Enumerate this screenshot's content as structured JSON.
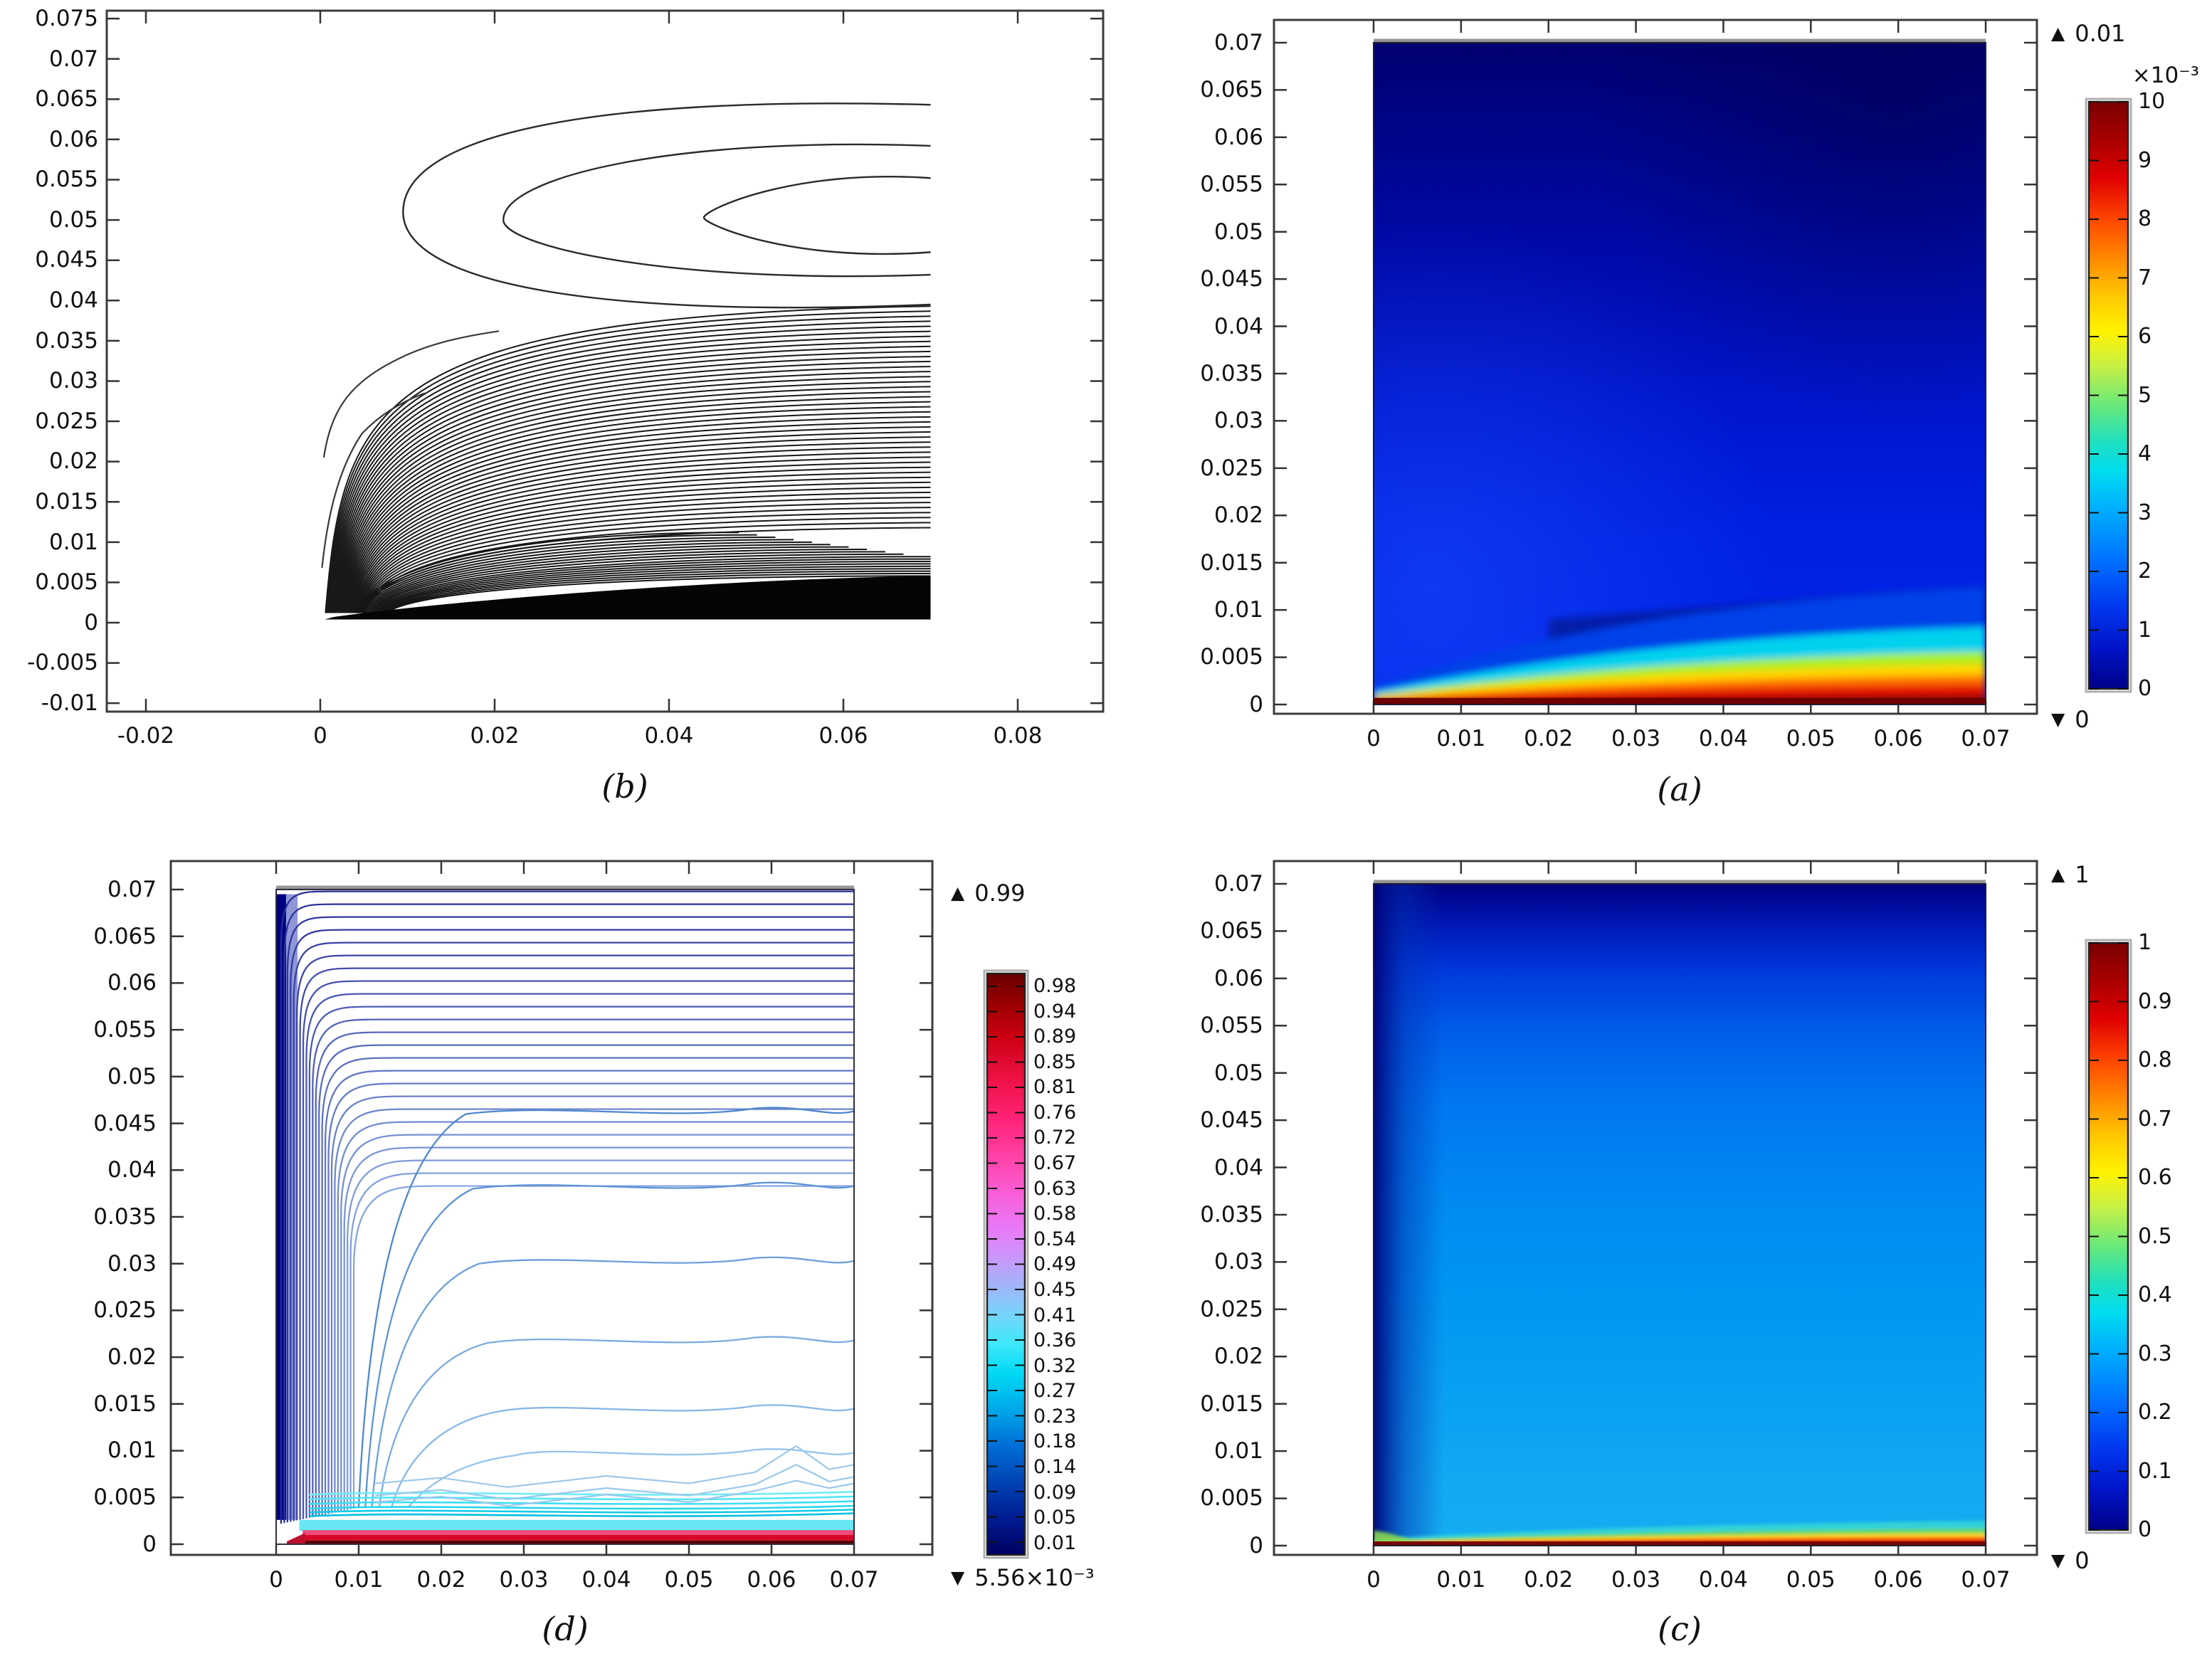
{
  "figure": {
    "background": "#ffffff"
  },
  "panels": {
    "b": {
      "label": "(b)",
      "yticks": [
        "0.075",
        "0.07",
        "0.065",
        "0.06",
        "0.055",
        "0.05",
        "0.045",
        "0.04",
        "0.035",
        "0.03",
        "0.025",
        "0.02",
        "0.015",
        "0.01",
        "0.005",
        "0",
        "-0.005",
        "-0.01"
      ],
      "xticks": [
        "-0.02",
        "0",
        "0.02",
        "0.04",
        "0.06",
        "0.08"
      ]
    },
    "a": {
      "label": "(a)",
      "yticks": [
        "0.07",
        "0.065",
        "0.06",
        "0.055",
        "0.05",
        "0.045",
        "0.04",
        "0.035",
        "0.03",
        "0.025",
        "0.02",
        "0.015",
        "0.01",
        "0.005",
        "0"
      ],
      "xticks": [
        "0",
        "0.01",
        "0.02",
        "0.03",
        "0.04",
        "0.05",
        "0.06",
        "0.07"
      ],
      "colorbar": {
        "max_marker": "▲",
        "max": "0.01",
        "multiplier": "×10⁻³",
        "ticks": [
          "10",
          "9",
          "8",
          "7",
          "6",
          "5",
          "4",
          "3",
          "2",
          "1",
          "0"
        ],
        "min_marker": "▼",
        "min": "0"
      }
    },
    "d": {
      "label": "(d)",
      "yticks": [
        "0.07",
        "0.065",
        "0.06",
        "0.055",
        "0.05",
        "0.045",
        "0.04",
        "0.035",
        "0.03",
        "0.025",
        "0.02",
        "0.015",
        "0.01",
        "0.005",
        "0"
      ],
      "xticks": [
        "0",
        "0.01",
        "0.02",
        "0.03",
        "0.04",
        "0.05",
        "0.06",
        "0.07"
      ],
      "colorbar": {
        "max_marker": "▲",
        "max": "0.99",
        "ticks": [
          "0.98",
          "0.94",
          "0.89",
          "0.85",
          "0.81",
          "0.76",
          "0.72",
          "0.67",
          "0.63",
          "0.58",
          "0.54",
          "0.49",
          "0.45",
          "0.41",
          "0.36",
          "0.32",
          "0.27",
          "0.23",
          "0.18",
          "0.14",
          "0.09",
          "0.05",
          "0.01"
        ],
        "min_marker": "▼",
        "min": "5.56×10⁻³"
      }
    },
    "c": {
      "label": "(c)",
      "yticks": [
        "0.07",
        "0.065",
        "0.06",
        "0.055",
        "0.05",
        "0.045",
        "0.04",
        "0.035",
        "0.03",
        "0.025",
        "0.02",
        "0.015",
        "0.01",
        "0.005",
        "0"
      ],
      "xticks": [
        "0",
        "0.01",
        "0.02",
        "0.03",
        "0.04",
        "0.05",
        "0.06",
        "0.07"
      ],
      "colorbar": {
        "max_marker": "▲",
        "max": "1",
        "ticks": [
          "1",
          "0.9",
          "0.8",
          "0.7",
          "0.6",
          "0.5",
          "0.4",
          "0.3",
          "0.2",
          "0.1",
          "0"
        ],
        "min_marker": "▼",
        "min": "0"
      }
    }
  },
  "chart_data": [
    {
      "id": "b",
      "type": "contour",
      "position": "top-left",
      "title": "(b)",
      "xlim": [
        -0.0245,
        0.0898
      ],
      "ylim": [
        -0.0115,
        0.076
      ],
      "xticks": [
        -0.02,
        0,
        0.02,
        0.04,
        0.06,
        0.08
      ],
      "yticks": [
        0.075,
        0.07,
        0.065,
        0.06,
        0.055,
        0.05,
        0.045,
        0.04,
        0.035,
        0.03,
        0.025,
        0.02,
        0.015,
        0.01,
        0.005,
        0,
        -0.005,
        -0.01
      ],
      "data_region": {
        "x": [
          0,
          0.07
        ],
        "y": [
          0,
          0.07
        ]
      },
      "line_color": "#1a1a1a",
      "grid": false,
      "legend": false,
      "description": "Black stream-function contours: three nested open recirculation loops between y≈0.038 and y≈0.065 opening toward x=0.07; below y≈0.04 a dense fan of contour lines sweeps from the origin to the right edge, merging into a solid black band along the bottom wall (y≲0.006); a white lens-shaped gap near y≈0.009, x>0.05."
    },
    {
      "id": "a",
      "type": "heatmap",
      "position": "top-right",
      "title": "(a)",
      "xlim": [
        -0.0114,
        0.0759
      ],
      "ylim": [
        -0.001,
        0.0724
      ],
      "xticks": [
        0,
        0.01,
        0.02,
        0.03,
        0.04,
        0.05,
        0.06,
        0.07
      ],
      "yticks": [
        0.07,
        0.065,
        0.06,
        0.055,
        0.05,
        0.045,
        0.04,
        0.035,
        0.03,
        0.025,
        0.02,
        0.015,
        0.01,
        0.005,
        0
      ],
      "data_region": {
        "x": [
          0,
          0.07
        ],
        "y": [
          0,
          0.07
        ]
      },
      "value_min": 0,
      "value_max": 0.01,
      "colorbar_scale": "×10⁻³",
      "colorbar_ticks": [
        10,
        9,
        8,
        7,
        6,
        5,
        4,
        3,
        2,
        1,
        0
      ],
      "colormap": "rainbow",
      "colormap_stops": [
        "#7a0000",
        "#e00000",
        "#ff4600",
        "#ffc800",
        "#fff200",
        "#64e87d",
        "#00dcf0",
        "#0072ff",
        "#0014c8",
        "#000088"
      ],
      "description": "Field ≈0 (dark navy) over most of the square domain; a thin boundary layer along the bottom wall rises through cyan, yellow, orange and red to ≈0.01 (dark red); the hot layer pinches to a point at the origin and thickens toward x=0.07."
    },
    {
      "id": "d",
      "type": "contour",
      "position": "bottom-left",
      "title": "(d)",
      "xlim": [
        -0.0128,
        0.0767
      ],
      "ylim": [
        -0.001,
        0.0732
      ],
      "xticks": [
        0,
        0.01,
        0.02,
        0.03,
        0.04,
        0.05,
        0.06,
        0.07
      ],
      "yticks": [
        0.07,
        0.065,
        0.06,
        0.055,
        0.05,
        0.045,
        0.04,
        0.035,
        0.03,
        0.025,
        0.02,
        0.015,
        0.01,
        0.005,
        0
      ],
      "data_region": {
        "x": [
          0,
          0.07
        ],
        "y": [
          0,
          0.07
        ]
      },
      "value_min": 0.00556,
      "value_max": 0.99,
      "levels": [
        0.01,
        0.05,
        0.09,
        0.14,
        0.18,
        0.23,
        0.27,
        0.32,
        0.36,
        0.41,
        0.45,
        0.49,
        0.54,
        0.58,
        0.63,
        0.67,
        0.72,
        0.76,
        0.81,
        0.85,
        0.89,
        0.94,
        0.98
      ],
      "colormap": "blue-cyan-magenta-red",
      "colormap_stops": [
        "#660000",
        "#cc0011",
        "#ff2277",
        "#f85fd8",
        "#c898fa",
        "#73d6fa",
        "#00d8f4",
        "#0070d8",
        "#001a90",
        "#000060"
      ],
      "description": "Colored contour lines: low dark-blue levels stacked against the left wall turning along the top boundary; lighter steel-blue mid levels curving across the interior toward the right edge; a dense cyan band and thin magenta/red/dark-red high levels in a boundary layer along the bottom wall."
    },
    {
      "id": "c",
      "type": "heatmap",
      "position": "bottom-right",
      "title": "(c)",
      "xlim": [
        -0.0114,
        0.0759
      ],
      "ylim": [
        -0.001,
        0.0724
      ],
      "xticks": [
        0,
        0.01,
        0.02,
        0.03,
        0.04,
        0.05,
        0.06,
        0.07
      ],
      "yticks": [
        0.07,
        0.065,
        0.06,
        0.055,
        0.05,
        0.045,
        0.04,
        0.035,
        0.03,
        0.025,
        0.02,
        0.015,
        0.01,
        0.005,
        0
      ],
      "data_region": {
        "x": [
          0,
          0.07
        ],
        "y": [
          0,
          0.07
        ]
      },
      "value_min": 0,
      "value_max": 1,
      "colorbar_ticks": [
        1,
        0.9,
        0.8,
        0.7,
        0.6,
        0.5,
        0.4,
        0.3,
        0.2,
        0.1,
        0
      ],
      "colormap": "rainbow",
      "colormap_stops": [
        "#7a0000",
        "#e00000",
        "#ff4600",
        "#ffc800",
        "#fff200",
        "#64e87d",
        "#00dcf0",
        "#0072ff",
        "#0014c8",
        "#000088"
      ],
      "description": "Smooth scalar field: dark navy (~0) along the top boundary grading to bright azure (~0.3) over the lower interior; a dark-blue strip along the left wall; a very thin cyan→green→yellow→orange→red layer at the bottom wall reaching ≈1 (dark red) at the bottom edge."
    }
  ]
}
